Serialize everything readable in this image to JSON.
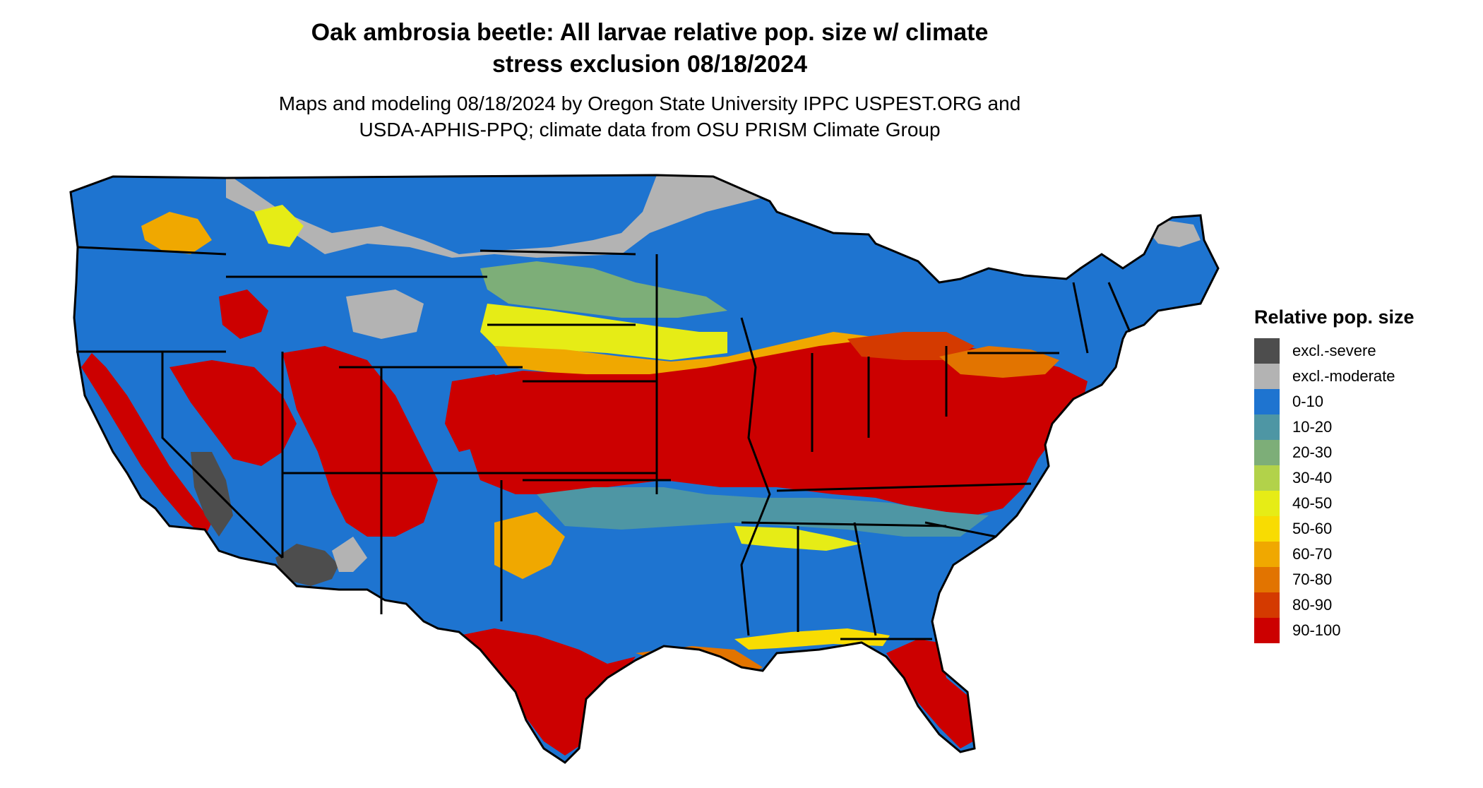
{
  "title_line1": "Oak ambrosia beetle: All larvae relative pop. size w/ climate",
  "title_line2": "stress exclusion 08/18/2024",
  "subtitle_line1": "Maps and modeling 08/18/2024 by Oregon State University IPPC USPEST.ORG and",
  "subtitle_line2": "USDA-APHIS-PPQ; climate data from OSU PRISM Climate Group",
  "legend": {
    "title": "Relative pop. size",
    "items": [
      {
        "label": "excl.-severe",
        "color": "#4d4d4d"
      },
      {
        "label": "excl.-moderate",
        "color": "#b3b3b3"
      },
      {
        "label": "0-10",
        "color": "#1e74d0"
      },
      {
        "label": "10-20",
        "color": "#4e96a4"
      },
      {
        "label": "20-30",
        "color": "#7dae78"
      },
      {
        "label": "30-40",
        "color": "#b2d24a"
      },
      {
        "label": "40-50",
        "color": "#e6ec16"
      },
      {
        "label": "50-60",
        "color": "#f8dc02"
      },
      {
        "label": "60-70",
        "color": "#f0a800"
      },
      {
        "label": "70-80",
        "color": "#e27400"
      },
      {
        "label": "80-90",
        "color": "#d43a00"
      },
      {
        "label": "90-100",
        "color": "#cc0000"
      }
    ]
  }
}
